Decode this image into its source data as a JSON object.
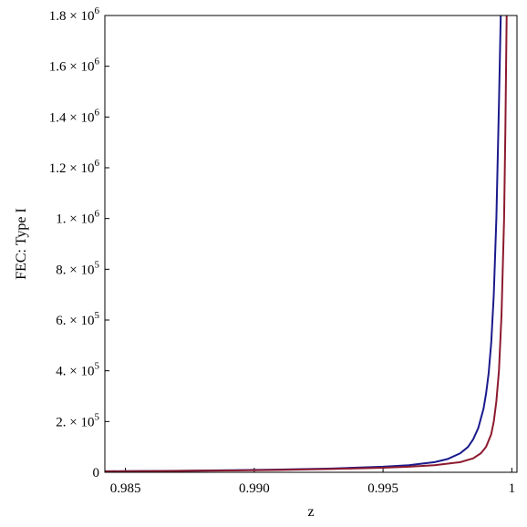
{
  "chart_data": {
    "type": "line",
    "title": "",
    "xlabel": "z",
    "ylabel": "FEC: Type I",
    "xlim": [
      0.9842,
      1.0002
    ],
    "ylim": [
      0,
      1800000
    ],
    "grid": false,
    "legend": "none",
    "x_ticks": [
      {
        "value": 0.985,
        "label": "0.985"
      },
      {
        "value": 0.99,
        "label": "0.990"
      },
      {
        "value": 0.995,
        "label": "0.995"
      },
      {
        "value": 1.0,
        "label": "1"
      }
    ],
    "y_ticks": [
      {
        "value": 0,
        "mantissa": "0",
        "exponent": ""
      },
      {
        "value": 200000,
        "mantissa": "2. × 10",
        "exponent": "5"
      },
      {
        "value": 400000,
        "mantissa": "4. × 10",
        "exponent": "5"
      },
      {
        "value": 600000,
        "mantissa": "6. × 10",
        "exponent": "5"
      },
      {
        "value": 800000,
        "mantissa": "8. × 10",
        "exponent": "5"
      },
      {
        "value": 1000000,
        "mantissa": "1. × 10",
        "exponent": "6"
      },
      {
        "value": 1200000,
        "mantissa": "1.2 × 10",
        "exponent": "6"
      },
      {
        "value": 1400000,
        "mantissa": "1.4 × 10",
        "exponent": "6"
      },
      {
        "value": 1600000,
        "mantissa": "1.6 × 10",
        "exponent": "6"
      },
      {
        "value": 1800000,
        "mantissa": "1.8 × 10",
        "exponent": "6"
      }
    ],
    "series": [
      {
        "color": "#1a1a8c",
        "points": [
          [
            0.9842,
            4000
          ],
          [
            0.985,
            4500
          ],
          [
            0.987,
            6000
          ],
          [
            0.989,
            8000
          ],
          [
            0.991,
            11000
          ],
          [
            0.993,
            15000
          ],
          [
            0.995,
            22000
          ],
          [
            0.996,
            28000
          ],
          [
            0.997,
            40000
          ],
          [
            0.9975,
            52000
          ],
          [
            0.998,
            75000
          ],
          [
            0.9983,
            100000
          ],
          [
            0.9985,
            130000
          ],
          [
            0.9987,
            175000
          ],
          [
            0.9989,
            250000
          ],
          [
            0.999,
            310000
          ],
          [
            0.9991,
            390000
          ],
          [
            0.9992,
            510000
          ],
          [
            0.9993,
            700000
          ],
          [
            0.9994,
            1000000
          ],
          [
            0.9995,
            1450000
          ],
          [
            0.99957,
            1800000
          ]
        ]
      },
      {
        "color": "#8c1a2e",
        "points": [
          [
            0.9842,
            3500
          ],
          [
            0.985,
            4000
          ],
          [
            0.987,
            5500
          ],
          [
            0.989,
            7000
          ],
          [
            0.991,
            9500
          ],
          [
            0.993,
            13000
          ],
          [
            0.995,
            18000
          ],
          [
            0.996,
            22000
          ],
          [
            0.997,
            28000
          ],
          [
            0.998,
            40000
          ],
          [
            0.9985,
            55000
          ],
          [
            0.9988,
            75000
          ],
          [
            0.999,
            100000
          ],
          [
            0.9992,
            150000
          ],
          [
            0.9993,
            200000
          ],
          [
            0.9994,
            280000
          ],
          [
            0.9995,
            400000
          ],
          [
            0.9996,
            620000
          ],
          [
            0.9997,
            1000000
          ],
          [
            0.99975,
            1350000
          ],
          [
            0.9998,
            1800000
          ]
        ]
      }
    ]
  }
}
